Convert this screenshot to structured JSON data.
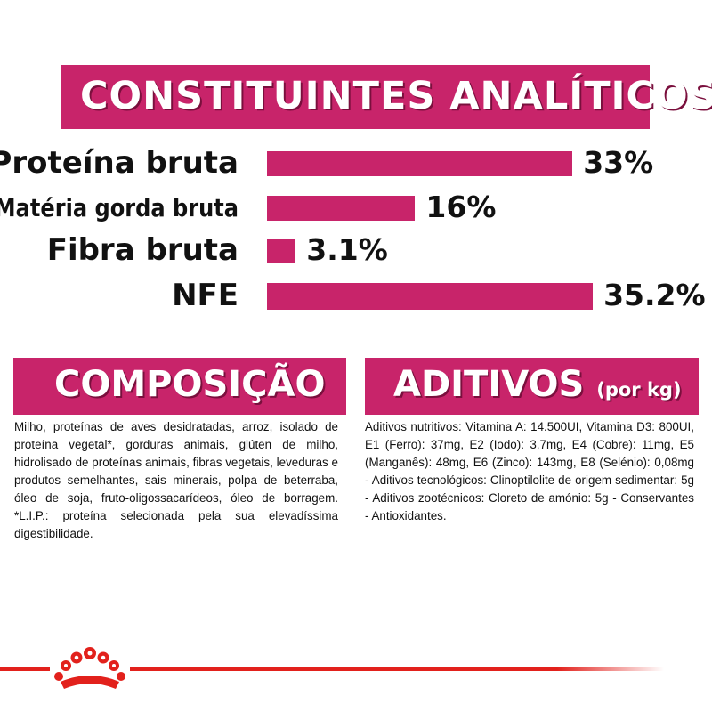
{
  "analytic": {
    "title": "CONSTITUINTES ANALÍTICOS",
    "rows": [
      {
        "label": "Proteína bruta",
        "value": 33,
        "display": "33%"
      },
      {
        "label": "Matéria gorda bruta",
        "value": 16,
        "display": "16%"
      },
      {
        "label": "Fibra bruta",
        "value": 3.1,
        "display": "3.1%"
      },
      {
        "label": "NFE",
        "value": 35.2,
        "display": "35.2%"
      }
    ],
    "bar_color": "#c8246a"
  },
  "composition": {
    "title": "COMPOSIÇÃO",
    "text": "Milho, proteínas de aves desidratadas, arroz, isolado de proteína vegetal*, gorduras animais, glúten de milho, hidrolisado de proteínas animais, fibras vegetais, leveduras e produtos semelhantes, sais minerais, polpa de beterraba, óleo de soja, fruto-oligossacarídeos, óleo de borragem. *L.I.P.: proteína selecionada pela sua elevadíssima digestibilidade."
  },
  "additives": {
    "title": "ADITIVOS",
    "subtitle": "(por kg)",
    "text": "Aditivos nutritivos: Vitamina A: 14.500UI, Vitamina D3: 800UI, E1 (Ferro): 37mg, E2 (Iodo): 3,7mg, E4 (Cobre): 11mg, E5 (Manganês): 48mg, E6 (Zinco): 143mg, E8 (Selénio): 0,08mg - Aditivos tecnológicos: Clinoptilolite de origem sedimentar: 5g - Aditivos zootécnicos: Cloreto de amónio: 5g - Conservantes - Antioxidantes."
  },
  "colors": {
    "accent": "#c8246a",
    "footer": "#e2211c"
  },
  "footer": {
    "logo_icon": "crown-icon"
  }
}
